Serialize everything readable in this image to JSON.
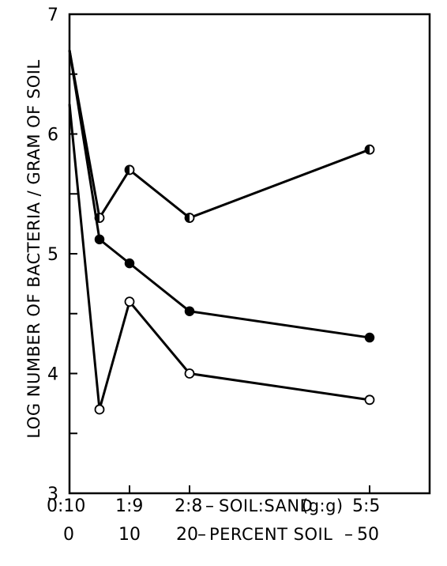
{
  "chart_data": {
    "type": "line",
    "title": "",
    "ylabel": "LOG NUMBER OF BACTERIA / GRAM OF SOIL",
    "xlabel_ratio": "SOIL:SAND (g:g)",
    "xlabel_percent": "PERCENT SOIL",
    "ylim": [
      3,
      7
    ],
    "y_ticks": [
      3,
      3.5,
      4,
      4.5,
      5,
      5.5,
      6,
      6.5,
      7
    ],
    "y_tick_labels": [
      "3",
      "4",
      "5",
      "6",
      "7"
    ],
    "x_ticks_percent": [
      0,
      10,
      20,
      50
    ],
    "x_tick_labels_ratio": [
      "0:10",
      "1:9",
      "2:8",
      "5:5"
    ],
    "x_tick_labels_percent": [
      "0",
      "10",
      "20",
      "50"
    ],
    "x_axis_row1": {
      "t0": "0:10",
      "t1": "1:9",
      "t2": "2:8",
      "dash": "–",
      "label": "SOIL:SAND",
      "units": "(g:g)",
      "t3": "5:5"
    },
    "x_axis_row2": {
      "t0": "0",
      "t1": "10",
      "t2": "20",
      "dash": "–",
      "label": "PERCENT SOIL",
      "dash2": "–",
      "t3": "50"
    },
    "x_max": 60,
    "series": [
      {
        "marker": "half-filled",
        "x": [
          0,
          5,
          10,
          20,
          50
        ],
        "y": [
          6.7,
          5.3,
          5.7,
          5.3,
          5.87
        ]
      },
      {
        "marker": "filled",
        "x": [
          0,
          5,
          10,
          20,
          50
        ],
        "y": [
          6.7,
          5.12,
          4.92,
          4.52,
          4.3
        ]
      },
      {
        "marker": "open",
        "x": [
          0,
          5,
          10,
          20,
          50
        ],
        "y": [
          6.25,
          3.7,
          4.6,
          4.0,
          3.78
        ]
      }
    ]
  }
}
